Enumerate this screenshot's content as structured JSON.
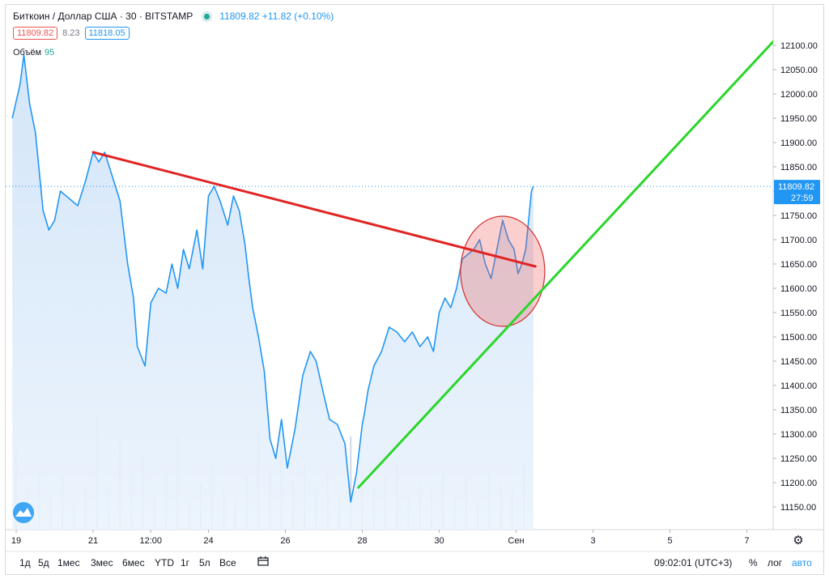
{
  "header": {
    "title": "Биткоин / Доллар США · 30 · BITSTAMP",
    "quote": "11809.82 +11.82 (+0.10%)",
    "bid": "11809.82",
    "spread": "8.23",
    "ask": "11818.05",
    "volume_label": "Объём",
    "volume_value": "95"
  },
  "price_tag": {
    "value": "11809.82",
    "countdown": "27:59"
  },
  "toolbar": {
    "timeframes": [
      "1д",
      "5д",
      "1мес",
      "3мес",
      "6мес",
      "YTD",
      "1г",
      "5л",
      "Все"
    ],
    "clock": "09:02:01 (UTC+3)",
    "percent": "%",
    "log": "лог",
    "auto": "авто"
  },
  "chart_data": {
    "type": "line",
    "price_axis": {
      "ticks": [
        11150,
        11200,
        11250,
        11300,
        11350,
        11400,
        11450,
        11500,
        11550,
        11600,
        11650,
        11700,
        11750,
        11800,
        11850,
        11900,
        11950,
        12000,
        12050,
        12100
      ],
      "tick_labels": [
        "11150.00",
        "11200.00",
        "11250.00",
        "11300.00",
        "11350.00",
        "11400.00",
        "11450.00",
        "11500.00",
        "11550.00",
        "11600.00",
        "11650.00",
        "11700.00",
        "11750.00",
        "11800.00",
        "11850.00",
        "11900.00",
        "11950.00",
        "12000.00",
        "12050.00",
        "12100.00"
      ]
    },
    "time_axis": {
      "labels": [
        "19",
        "21",
        "12:00",
        "24",
        "26",
        "28",
        "30",
        "Сен",
        "3",
        "5",
        "7"
      ],
      "days": [
        19,
        21,
        22.5,
        24,
        26,
        28,
        30,
        32,
        34,
        36,
        38
      ]
    },
    "current_price": 11809.82,
    "price_series": {
      "x": [
        18.9,
        19.1,
        19.2,
        19.35,
        19.5,
        19.7,
        19.85,
        20.0,
        20.15,
        20.3,
        20.45,
        20.6,
        20.8,
        21.0,
        21.15,
        21.3,
        21.5,
        21.7,
        21.9,
        22.05,
        22.15,
        22.35,
        22.5,
        22.7,
        22.9,
        23.05,
        23.2,
        23.35,
        23.5,
        23.7,
        23.85,
        24.0,
        24.15,
        24.3,
        24.5,
        24.65,
        24.8,
        24.95,
        25.05,
        25.15,
        25.3,
        25.45,
        25.6,
        25.75,
        25.9,
        26.05,
        26.25,
        26.45,
        26.65,
        26.8,
        27.0,
        27.15,
        27.35,
        27.55,
        27.7,
        27.85,
        28.0,
        28.05,
        28.15,
        28.3,
        28.5,
        28.7,
        28.9,
        29.1,
        29.3,
        29.5,
        29.7,
        29.85,
        30.0,
        30.15,
        30.3,
        30.45,
        30.6,
        30.75,
        30.9,
        31.05,
        31.2,
        31.35,
        31.5,
        31.65,
        31.8,
        31.95,
        32.05,
        32.15,
        32.25,
        32.4,
        32.45
      ],
      "y": [
        11950,
        12020,
        12080,
        11980,
        11920,
        11760,
        11720,
        11740,
        11800,
        11790,
        11780,
        11770,
        11820,
        11880,
        11860,
        11880,
        11830,
        11780,
        11650,
        11580,
        11480,
        11440,
        11570,
        11600,
        11590,
        11650,
        11600,
        11680,
        11640,
        11720,
        11640,
        11790,
        11810,
        11780,
        11730,
        11790,
        11760,
        11690,
        11620,
        11560,
        11500,
        11430,
        11290,
        11250,
        11330,
        11230,
        11310,
        11420,
        11470,
        11450,
        11380,
        11330,
        11320,
        11280,
        11160,
        11220,
        11320,
        11340,
        11390,
        11440,
        11470,
        11520,
        11510,
        11490,
        11510,
        11480,
        11500,
        11470,
        11550,
        11580,
        11560,
        11600,
        11660,
        11670,
        11680,
        11700,
        11650,
        11620,
        11680,
        11740,
        11700,
        11680,
        11630,
        11650,
        11680,
        11800,
        11810
      ]
    },
    "volume_series": {
      "x": [
        19.0,
        19.3,
        19.6,
        19.9,
        20.2,
        20.5,
        20.8,
        21.1,
        21.4,
        21.7,
        22.0,
        22.3,
        22.6,
        22.9,
        23.2,
        23.5,
        23.8,
        24.1,
        24.4,
        24.7,
        25.0,
        25.3,
        25.6,
        25.9,
        26.2,
        26.5,
        26.8,
        27.1,
        27.4,
        27.7,
        28.0,
        28.3,
        28.6,
        28.9,
        29.2,
        29.5,
        29.8,
        30.1,
        30.4,
        30.7,
        31.0,
        31.3,
        31.6,
        31.9,
        32.2
      ],
      "values": [
        120,
        60,
        90,
        50,
        80,
        40,
        70,
        170,
        60,
        130,
        80,
        110,
        50,
        90,
        140,
        40,
        70,
        100,
        60,
        50,
        80,
        150,
        90,
        120,
        70,
        100,
        60,
        80,
        50,
        140,
        90,
        60,
        80,
        100,
        50,
        70,
        60,
        90,
        50,
        80,
        40,
        90,
        70,
        60,
        100
      ]
    },
    "trend_lines": [
      {
        "color": "#e02424",
        "from": [
          21.0,
          11880
        ],
        "to": [
          32.5,
          11645
        ]
      },
      {
        "color": "#2bd62b",
        "from": [
          27.9,
          11190
        ],
        "to": [
          39.3,
          12160
        ]
      }
    ],
    "highlight_circle": {
      "color": "#e57373",
      "center": [
        31.65,
        11635
      ]
    },
    "colors": {
      "line": "#2196f3",
      "fill": "#dcebfa",
      "bid": "#ef5350",
      "live": "#26a69a"
    }
  }
}
